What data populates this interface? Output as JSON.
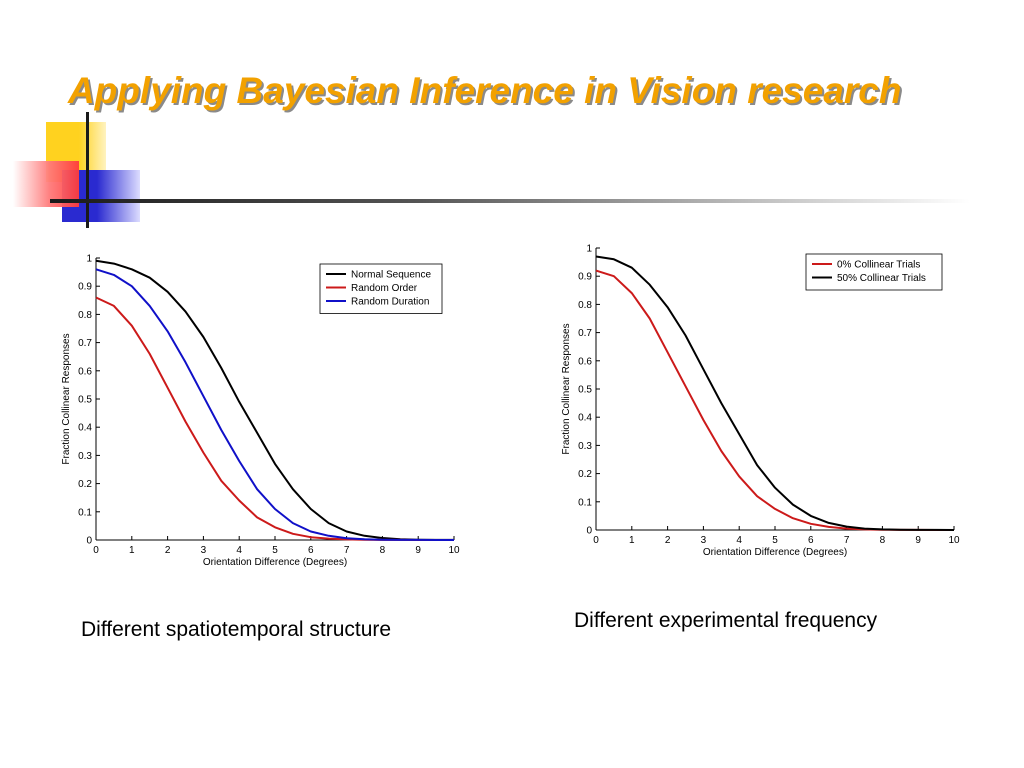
{
  "slide": {
    "title": "Applying Bayesian Inference in Vision research"
  },
  "captions": {
    "left": "Different spatiotemporal structure",
    "right": "Different experimental frequency"
  },
  "colors": {
    "title": "#f2a100",
    "black_series": "#000000",
    "red_series": "#cc1a1a",
    "blue_series": "#1010c8"
  },
  "chart_data": [
    {
      "type": "line",
      "title": "",
      "xlabel": "Orientation Difference (Degrees)",
      "ylabel": "Fraction Collinear Responses",
      "xlim": [
        0,
        10
      ],
      "ylim": [
        0,
        1
      ],
      "xticks": [
        "0",
        "1",
        "2",
        "3",
        "4",
        "5",
        "6",
        "7",
        "8",
        "9",
        "10"
      ],
      "yticks": [
        "0",
        "0.1",
        "0.2",
        "0.3",
        "0.4",
        "0.5",
        "0.6",
        "0.7",
        "0.8",
        "0.9",
        "1"
      ],
      "grid": false,
      "legend_position": "top-right",
      "series": [
        {
          "name": "Normal Sequence",
          "color": "#000000",
          "x": [
            0,
            0.5,
            1,
            1.5,
            2,
            2.5,
            3,
            3.5,
            4,
            4.5,
            5,
            5.5,
            6,
            6.5,
            7,
            7.5,
            8,
            8.5,
            9,
            9.5,
            10
          ],
          "y": [
            0.99,
            0.98,
            0.96,
            0.93,
            0.88,
            0.81,
            0.72,
            0.61,
            0.49,
            0.38,
            0.27,
            0.18,
            0.11,
            0.06,
            0.03,
            0.015,
            0.007,
            0.003,
            0.001,
            0.0005,
            0.0002
          ]
        },
        {
          "name": "Random Order",
          "color": "#cc1a1a",
          "x": [
            0,
            0.5,
            1,
            1.5,
            2,
            2.5,
            3,
            3.5,
            4,
            4.5,
            5,
            5.5,
            6,
            6.5,
            7,
            7.5,
            8,
            8.5,
            9,
            9.5,
            10
          ],
          "y": [
            0.86,
            0.83,
            0.76,
            0.66,
            0.54,
            0.42,
            0.31,
            0.21,
            0.14,
            0.08,
            0.045,
            0.022,
            0.01,
            0.005,
            0.002,
            0.001,
            0.0005,
            0.0002,
            0.0001,
            0,
            0
          ]
        },
        {
          "name": "Random Duration",
          "color": "#1010c8",
          "x": [
            0,
            0.5,
            1,
            1.5,
            2,
            2.5,
            3,
            3.5,
            4,
            4.5,
            5,
            5.5,
            6,
            6.5,
            7,
            7.5,
            8,
            8.5,
            9,
            9.5,
            10
          ],
          "y": [
            0.96,
            0.94,
            0.9,
            0.83,
            0.74,
            0.63,
            0.51,
            0.39,
            0.28,
            0.18,
            0.11,
            0.06,
            0.03,
            0.015,
            0.006,
            0.003,
            0.001,
            0.0005,
            0.0002,
            0.0001,
            0
          ]
        }
      ]
    },
    {
      "type": "line",
      "title": "",
      "xlabel": "Orientation Difference (Degrees)",
      "ylabel": "Fraction Collinear Responses",
      "xlim": [
        0,
        10
      ],
      "ylim": [
        0,
        1
      ],
      "xticks": [
        "0",
        "1",
        "2",
        "3",
        "4",
        "5",
        "6",
        "7",
        "8",
        "9",
        "10"
      ],
      "yticks": [
        "0",
        "0.1",
        "0.2",
        "0.3",
        "0.4",
        "0.5",
        "0.6",
        "0.7",
        "0.8",
        "0.9",
        "1"
      ],
      "grid": false,
      "legend_position": "top-right",
      "series": [
        {
          "name": "0% Collinear Trials",
          "color": "#cc1a1a",
          "x": [
            0,
            0.5,
            1,
            1.5,
            2,
            2.5,
            3,
            3.5,
            4,
            4.5,
            5,
            5.5,
            6,
            6.5,
            7,
            7.5,
            8,
            8.5,
            9,
            9.5,
            10
          ],
          "y": [
            0.92,
            0.9,
            0.84,
            0.75,
            0.63,
            0.51,
            0.39,
            0.28,
            0.19,
            0.12,
            0.075,
            0.042,
            0.022,
            0.011,
            0.005,
            0.002,
            0.001,
            0.0005,
            0.0002,
            0.0001,
            0
          ]
        },
        {
          "name": "50% Collinear Trials",
          "color": "#000000",
          "x": [
            0,
            0.5,
            1,
            1.5,
            2,
            2.5,
            3,
            3.5,
            4,
            4.5,
            5,
            5.5,
            6,
            6.5,
            7,
            7.5,
            8,
            8.5,
            9,
            9.5,
            10
          ],
          "y": [
            0.97,
            0.96,
            0.93,
            0.87,
            0.79,
            0.69,
            0.57,
            0.45,
            0.34,
            0.23,
            0.15,
            0.09,
            0.05,
            0.025,
            0.012,
            0.005,
            0.002,
            0.001,
            0.0004,
            0.0002,
            0.0001
          ]
        }
      ]
    }
  ]
}
